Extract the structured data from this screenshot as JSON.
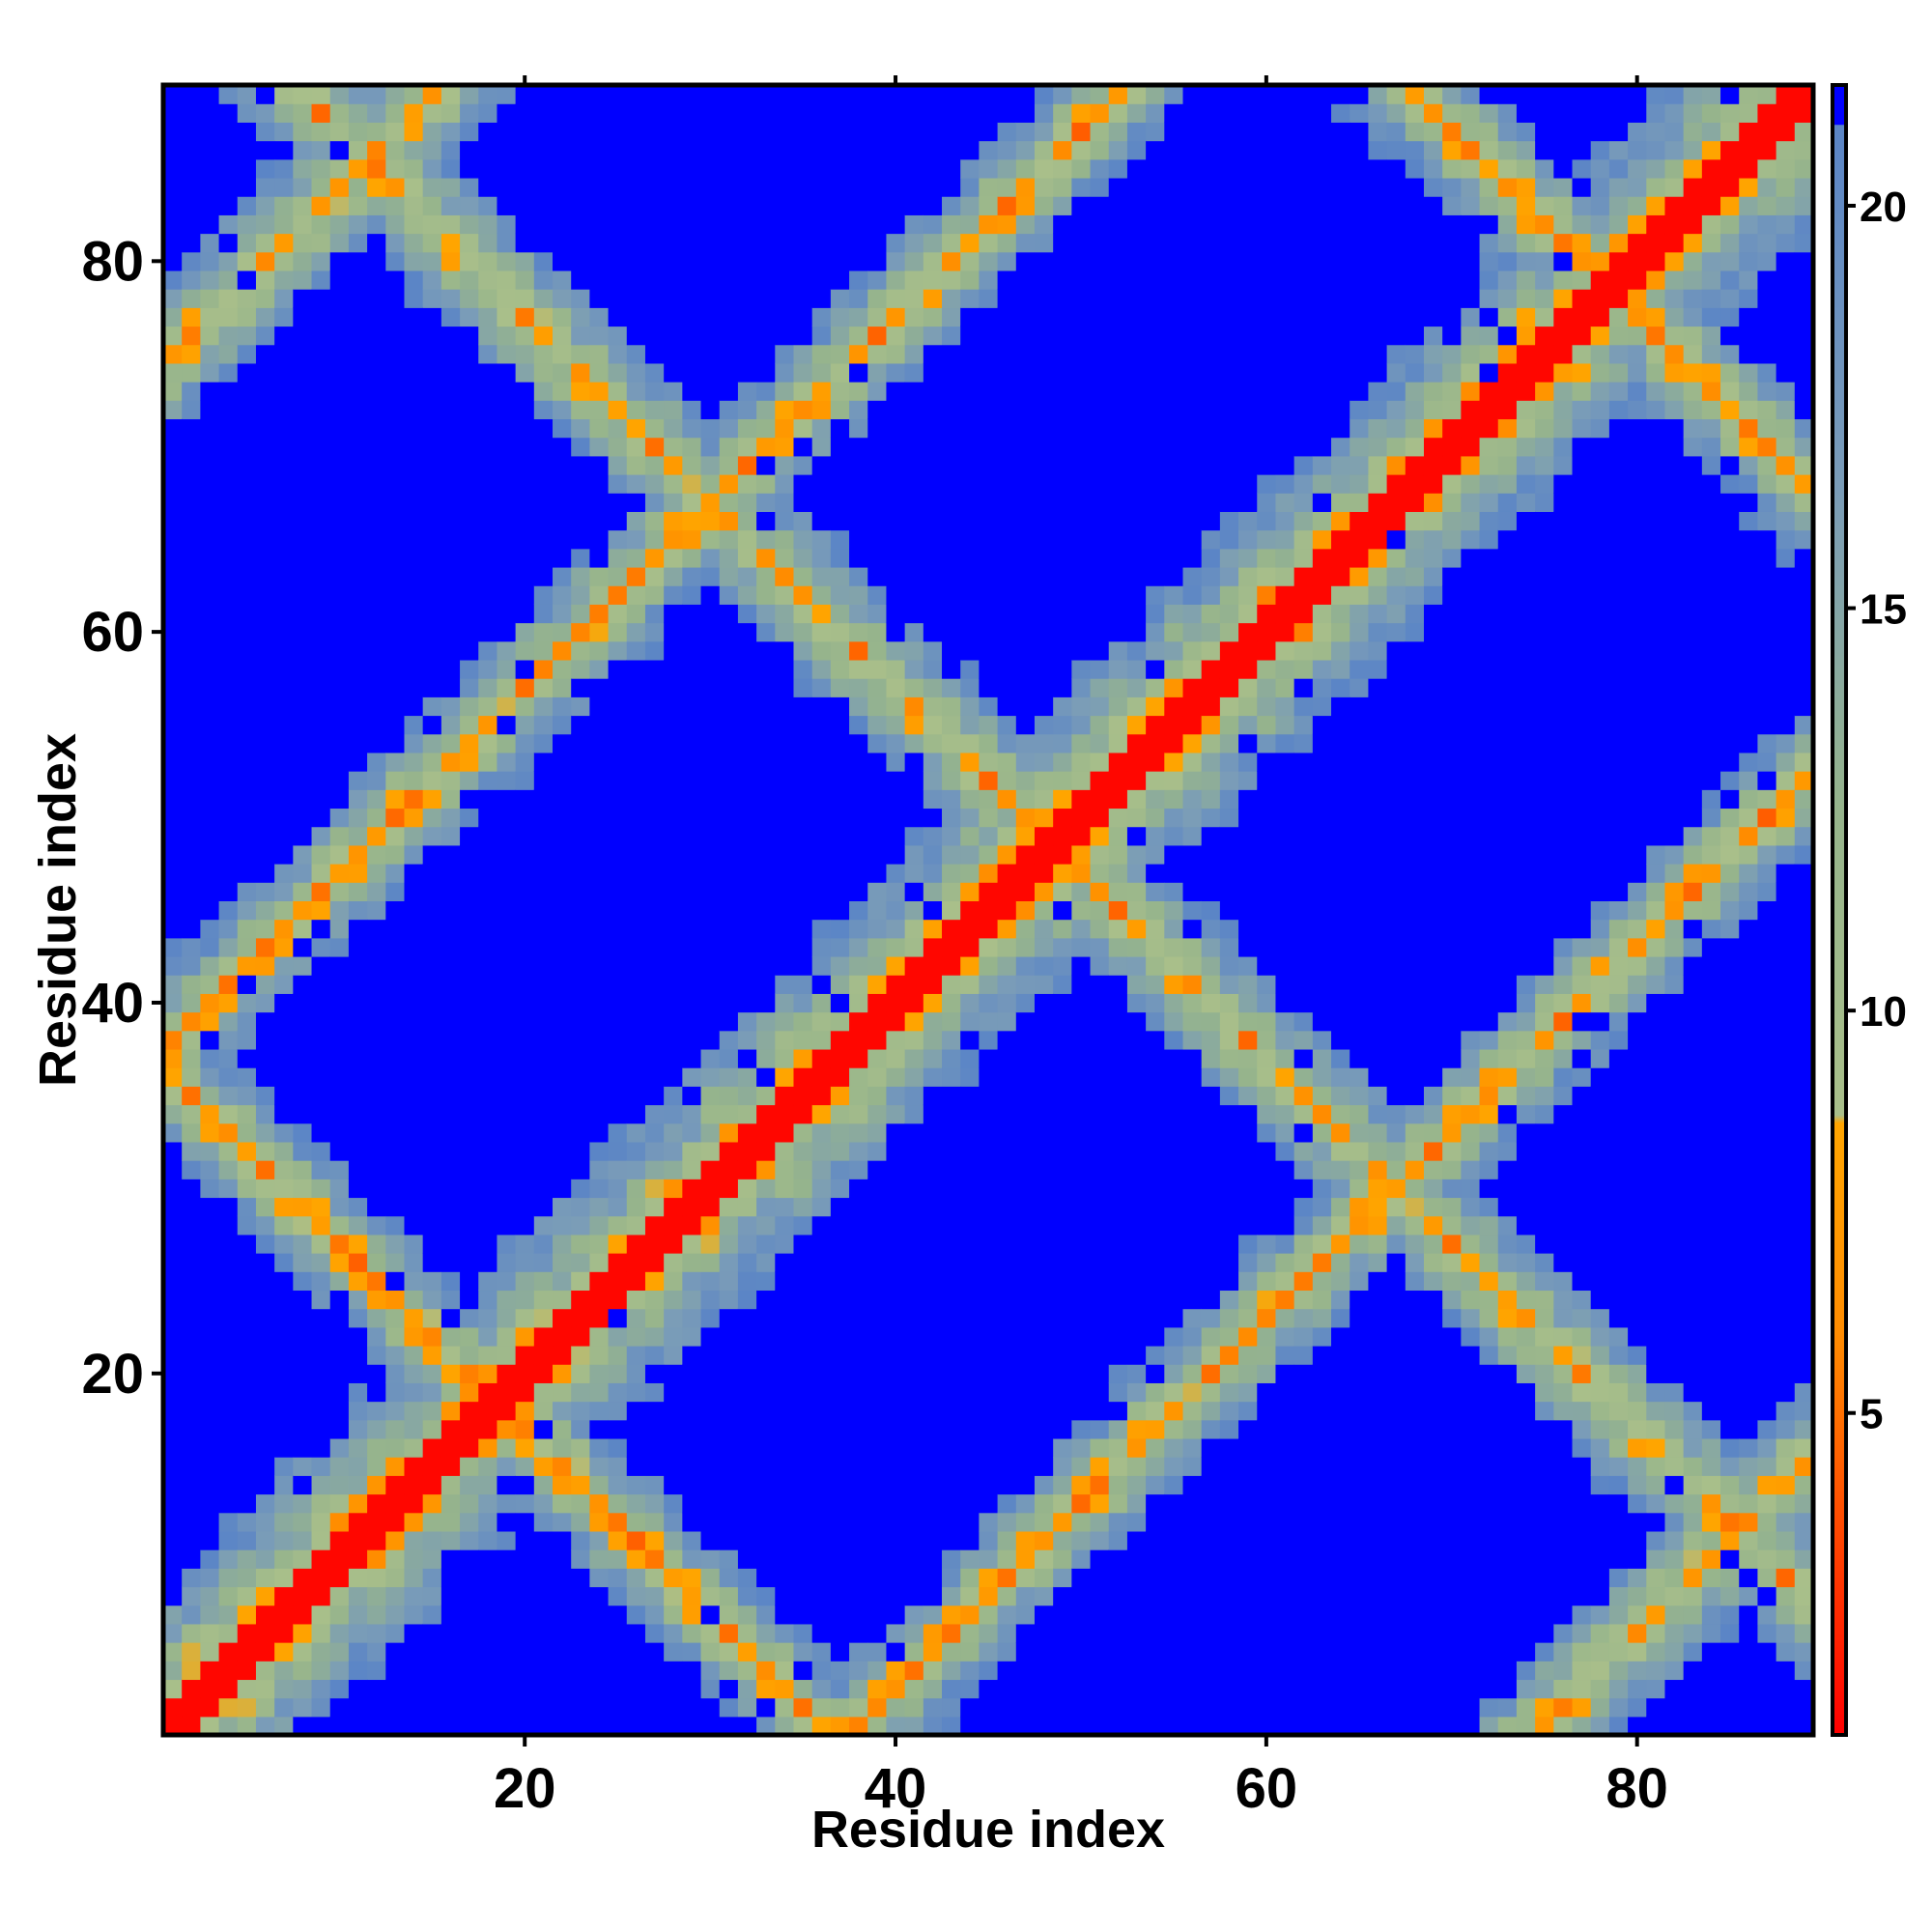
{
  "chart_data": {
    "type": "heatmap",
    "title": "",
    "xlabel": "Residue index",
    "ylabel": "Residue index",
    "n_residues": 89,
    "x_range": [
      1,
      89
    ],
    "y_range": [
      1,
      89
    ],
    "x_ticks": [
      20,
      40,
      60,
      80
    ],
    "y_ticks": [
      20,
      40,
      60,
      80
    ],
    "x_tick_labels": [
      "20",
      "40",
      "60",
      "80"
    ],
    "y_tick_labels": [
      "20",
      "40",
      "60",
      "80"
    ],
    "colorbar": {
      "range": [
        1,
        21.5
      ],
      "ticks": [
        5,
        10,
        15,
        20
      ],
      "tick_labels": [
        "5",
        "10",
        "15",
        "20"
      ],
      "stops": [
        {
          "value": 1,
          "color": "#ff0000"
        },
        {
          "value": 4.2,
          "color": "#ff5a00"
        },
        {
          "value": 6.0,
          "color": "#ff8c00"
        },
        {
          "value": 8.6,
          "color": "#ffa500"
        },
        {
          "value": 8.7,
          "color": "#a9bf8a"
        },
        {
          "value": 12.5,
          "color": "#96b48c"
        },
        {
          "value": 16.5,
          "color": "#7a9cb8"
        },
        {
          "value": 21.0,
          "color": "#5b85c6"
        },
        {
          "value": 21.01,
          "color": "#0000ff"
        },
        {
          "value": 21.5,
          "color": "#0000ff"
        }
      ]
    },
    "structure": {
      "model": "coiled-coil contact map: main diagonal band plus periodic anti-diagonal helix-packing bands",
      "main_diagonal_distance": 1.5,
      "cross_bands": [
        {
          "i_plus_j": 37,
          "period_shift": 0
        },
        {
          "i_plus_j": 97,
          "period_shift": 0
        },
        {
          "i_plus_j": 157,
          "period_shift": 0
        },
        {
          "j_minus_i": 74,
          "period_shift": 0
        },
        {
          "j_minus_i": -74,
          "period_shift": 0
        },
        {
          "j_minus_i": 37,
          "period_shift": 0
        },
        {
          "j_minus_i": -37,
          "period_shift": 0
        }
      ],
      "band_core_distance": 6.5,
      "band_falloff_per_residue": 3.2,
      "cutoff_distance": 21.0,
      "noise_amplitude": 2.5
    },
    "legend": "none",
    "grid": false
  }
}
